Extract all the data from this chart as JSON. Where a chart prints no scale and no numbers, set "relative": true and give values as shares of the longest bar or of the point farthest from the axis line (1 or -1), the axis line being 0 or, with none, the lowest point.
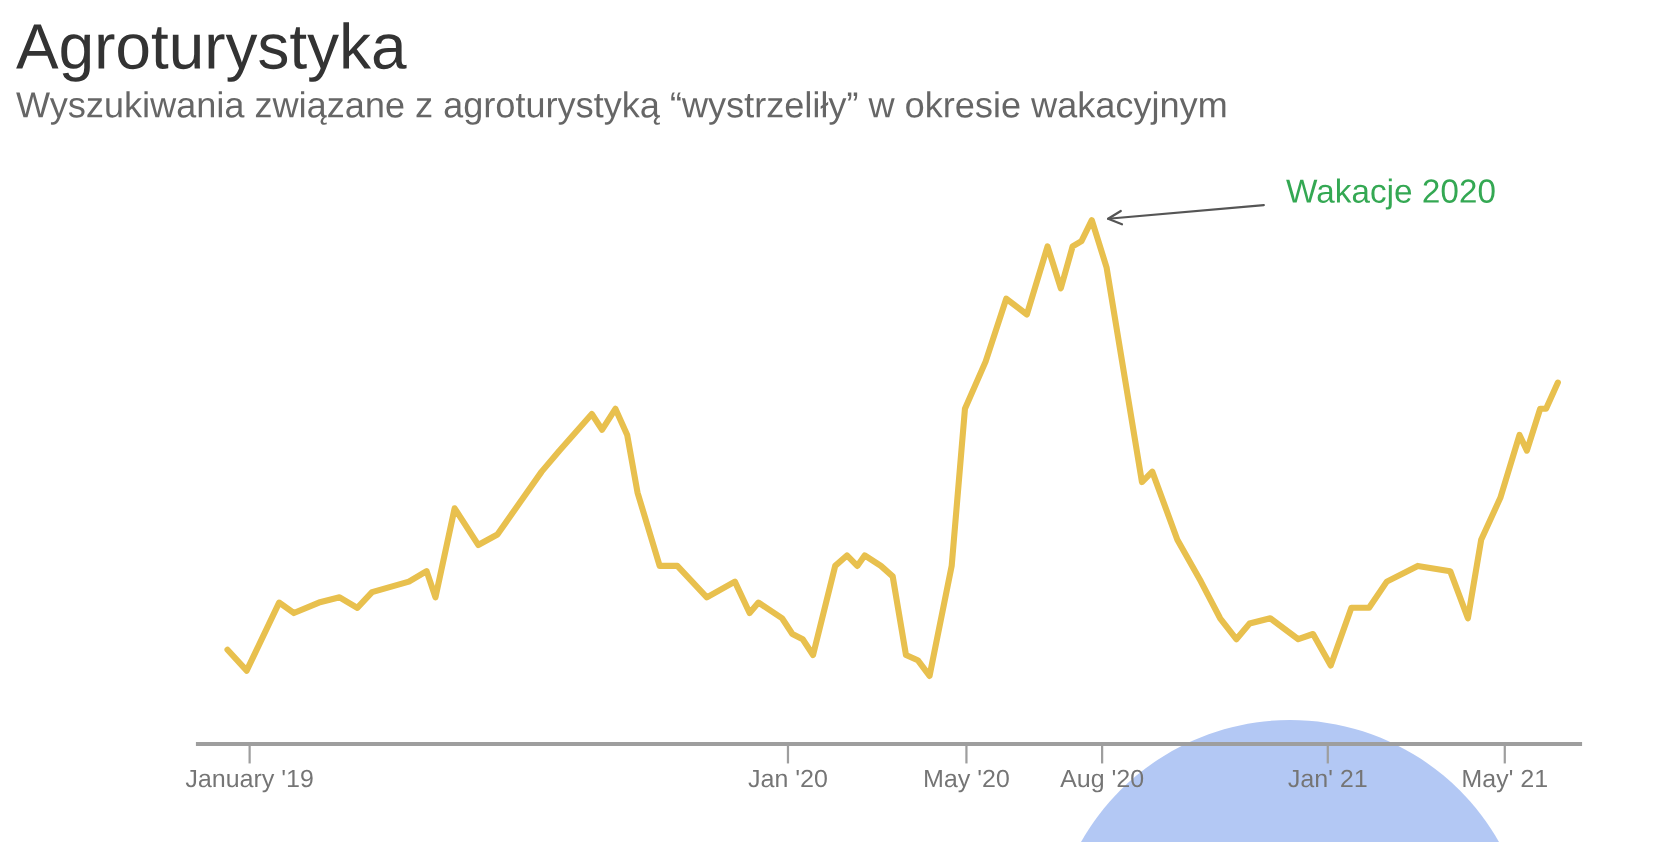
{
  "chart_data": {
    "type": "line",
    "title": "Agroturystyka",
    "subtitle": "Wyszukiwania związane z agroturystyką “wystrzeliły” w okresie wakacyjnym",
    "relative": true,
    "xlim": [
      "2018-11-27",
      "2021-06-21"
    ],
    "xticks": [
      {
        "value": "2019-01-01",
        "label": "January '19"
      },
      {
        "value": "2020-01-01",
        "label": "Jan '20"
      },
      {
        "value": "2020-05-01",
        "label": "May '20"
      },
      {
        "value": "2020-08-01",
        "label": "Aug '20"
      },
      {
        "value": "2021-01-01",
        "label": "Jan' 21"
      },
      {
        "value": "2021-05-01",
        "label": "May' 21"
      }
    ],
    "tick_labels": "x",
    "grid": false,
    "legend": false,
    "marker": "none",
    "line_style": "solid",
    "annotations": [
      {
        "text": "Wakacje 2020",
        "x": "2020-07-25",
        "y": 1.0
      }
    ],
    "series": [
      {
        "color": "#e8c04e",
        "x": [
          "2018-12-17",
          "2018-12-30",
          "2019-01-21",
          "2019-01-31",
          "2019-02-17",
          "2019-03-03",
          "2019-03-15",
          "2019-03-25",
          "2019-04-19",
          "2019-05-01",
          "2019-05-07",
          "2019-05-20",
          "2019-06-05",
          "2019-06-18",
          "2019-07-03",
          "2019-07-18",
          "2019-07-30",
          "2019-08-21",
          "2019-08-28",
          "2019-09-06",
          "2019-09-14",
          "2019-09-21",
          "2019-10-06",
          "2019-10-18",
          "2019-11-07",
          "2019-11-26",
          "2019-12-06",
          "2019-12-12",
          "2019-12-28",
          "2020-01-04",
          "2020-01-11",
          "2020-01-18",
          "2020-02-02",
          "2020-02-10",
          "2020-02-17",
          "2020-02-22",
          "2020-03-04",
          "2020-03-12",
          "2020-03-21",
          "2020-03-29",
          "2020-04-06",
          "2020-04-21",
          "2020-04-30",
          "2020-05-14",
          "2020-05-28",
          "2020-06-11",
          "2020-06-25",
          "2020-07-04",
          "2020-07-12",
          "2020-07-18",
          "2020-07-25",
          "2020-08-04",
          "2020-08-28",
          "2020-09-04",
          "2020-09-21",
          "2020-10-07",
          "2020-10-20",
          "2020-10-31",
          "2020-11-09",
          "2020-11-23",
          "2020-12-12",
          "2020-12-22",
          "2021-01-03",
          "2021-01-17",
          "2021-01-29",
          "2021-02-10",
          "2021-03-03",
          "2021-03-25",
          "2021-04-06",
          "2021-04-15",
          "2021-04-28",
          "2021-05-11",
          "2021-05-16",
          "2021-05-25",
          "2021-05-29",
          "2021-06-06"
        ],
        "values": [
          0.18,
          0.14,
          0.27,
          0.25,
          0.27,
          0.28,
          0.26,
          0.29,
          0.31,
          0.33,
          0.28,
          0.45,
          0.38,
          0.4,
          0.46,
          0.52,
          0.56,
          0.63,
          0.6,
          0.64,
          0.59,
          0.48,
          0.34,
          0.34,
          0.28,
          0.31,
          0.25,
          0.27,
          0.24,
          0.21,
          0.2,
          0.17,
          0.34,
          0.36,
          0.34,
          0.36,
          0.34,
          0.32,
          0.17,
          0.16,
          0.13,
          0.34,
          0.64,
          0.73,
          0.85,
          0.82,
          0.95,
          0.87,
          0.95,
          0.96,
          1.0,
          0.91,
          0.5,
          0.52,
          0.39,
          0.31,
          0.24,
          0.2,
          0.23,
          0.24,
          0.2,
          0.21,
          0.15,
          0.26,
          0.26,
          0.31,
          0.34,
          0.33,
          0.24,
          0.39,
          0.47,
          0.59,
          0.56,
          0.64,
          0.64,
          0.69
        ]
      }
    ]
  }
}
